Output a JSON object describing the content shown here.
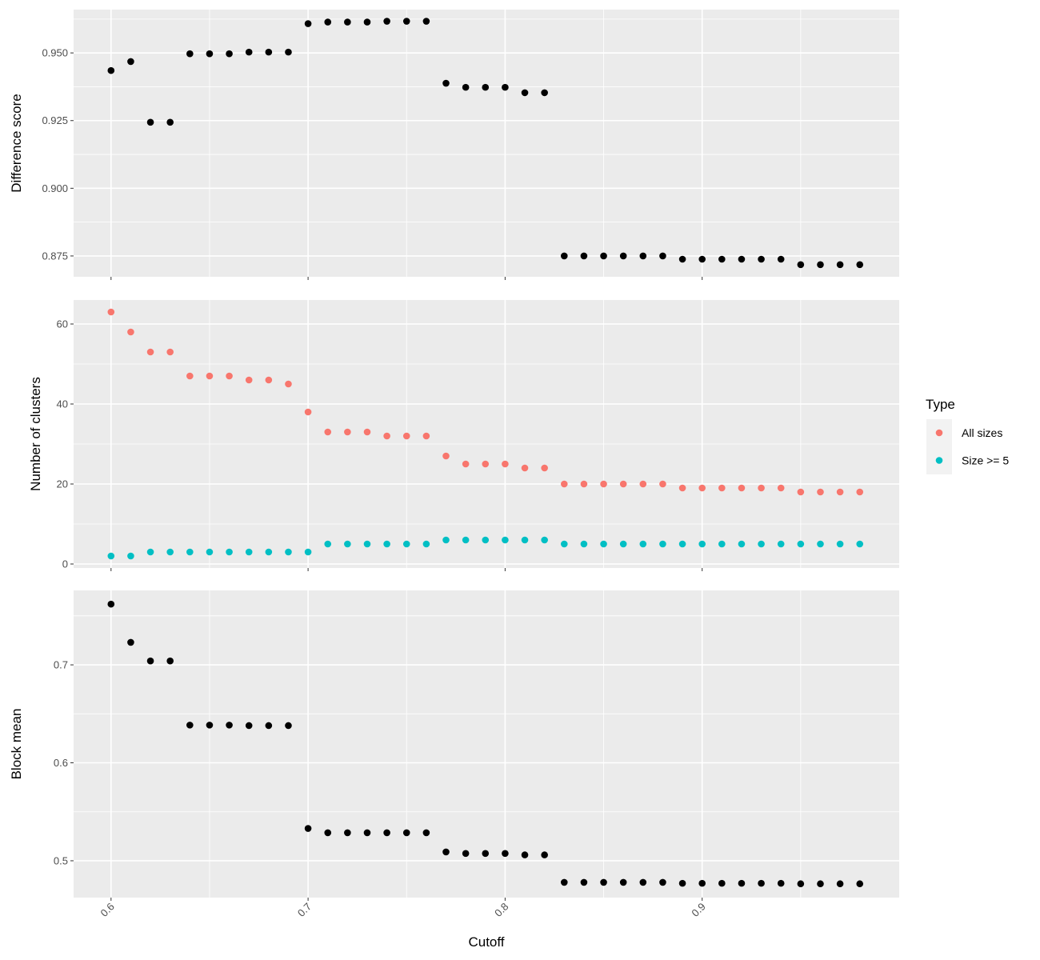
{
  "chart_data": [
    {
      "type": "scatter",
      "ylabel": "Difference score",
      "x": [
        0.6,
        0.61,
        0.62,
        0.63,
        0.64,
        0.65,
        0.66,
        0.67,
        0.68,
        0.69,
        0.7,
        0.71,
        0.72,
        0.73,
        0.74,
        0.75,
        0.76,
        0.77,
        0.78,
        0.79,
        0.8,
        0.81,
        0.82,
        0.83,
        0.84,
        0.85,
        0.86,
        0.87,
        0.88,
        0.89,
        0.9,
        0.91,
        0.92,
        0.93,
        0.94,
        0.95,
        0.96,
        0.97,
        0.98
      ],
      "series": [
        {
          "name": "Difference score",
          "color": "#000000",
          "values": [
            0.9435,
            0.9468,
            0.9244,
            0.9244,
            0.9497,
            0.9497,
            0.9497,
            0.9503,
            0.9503,
            0.9503,
            0.9608,
            0.9614,
            0.9614,
            0.9614,
            0.9617,
            0.9617,
            0.9617,
            0.9388,
            0.9373,
            0.9373,
            0.9373,
            0.9353,
            0.9353,
            0.875,
            0.875,
            0.875,
            0.875,
            0.875,
            0.875,
            0.8738,
            0.8738,
            0.8738,
            0.8738,
            0.8738,
            0.8738,
            0.8718,
            0.8718,
            0.8718,
            0.8718
          ]
        }
      ],
      "yticks": [
        "0.875",
        "0.900",
        "0.925",
        "0.950"
      ],
      "ytick_values": [
        0.875,
        0.9,
        0.925,
        0.95
      ],
      "ylim": [
        0.8673,
        0.966
      ],
      "xlim": [
        0.581,
        1.0
      ]
    },
    {
      "type": "scatter",
      "ylabel": "Number of clusters",
      "x": [
        0.6,
        0.61,
        0.62,
        0.63,
        0.64,
        0.65,
        0.66,
        0.67,
        0.68,
        0.69,
        0.7,
        0.71,
        0.72,
        0.73,
        0.74,
        0.75,
        0.76,
        0.77,
        0.78,
        0.79,
        0.8,
        0.81,
        0.82,
        0.83,
        0.84,
        0.85,
        0.86,
        0.87,
        0.88,
        0.89,
        0.9,
        0.91,
        0.92,
        0.93,
        0.94,
        0.95,
        0.96,
        0.97,
        0.98
      ],
      "series": [
        {
          "name": "All sizes",
          "color": "#F8766D",
          "values": [
            63,
            58,
            53,
            53,
            47,
            47,
            47,
            46,
            46,
            45,
            38,
            33,
            33,
            33,
            32,
            32,
            32,
            27,
            25,
            25,
            25,
            24,
            24,
            20,
            20,
            20,
            20,
            20,
            20,
            19,
            19,
            19,
            19,
            19,
            19,
            18,
            18,
            18,
            18
          ]
        },
        {
          "name": "Size >= 5",
          "color": "#00BFC4",
          "values": [
            2,
            2,
            3,
            3,
            3,
            3,
            3,
            3,
            3,
            3,
            3,
            5,
            5,
            5,
            5,
            5,
            5,
            6,
            6,
            6,
            6,
            6,
            6,
            5,
            5,
            5,
            5,
            5,
            5,
            5,
            5,
            5,
            5,
            5,
            5,
            5,
            5,
            5,
            5
          ]
        }
      ],
      "yticks": [
        "0",
        "20",
        "40",
        "60"
      ],
      "ytick_values": [
        0,
        20,
        40,
        60
      ],
      "ylim": [
        -1,
        66
      ],
      "xlim": [
        0.581,
        1.0
      ]
    },
    {
      "type": "scatter",
      "ylabel": "Block mean",
      "xlabel": "Cutoff",
      "x": [
        0.6,
        0.61,
        0.62,
        0.63,
        0.64,
        0.65,
        0.66,
        0.67,
        0.68,
        0.69,
        0.7,
        0.71,
        0.72,
        0.73,
        0.74,
        0.75,
        0.76,
        0.77,
        0.78,
        0.79,
        0.8,
        0.81,
        0.82,
        0.83,
        0.84,
        0.85,
        0.86,
        0.87,
        0.88,
        0.89,
        0.9,
        0.91,
        0.92,
        0.93,
        0.94,
        0.95,
        0.96,
        0.97,
        0.98
      ],
      "series": [
        {
          "name": "Block mean",
          "color": "#000000",
          "values": [
            0.762,
            0.723,
            0.704,
            0.704,
            0.6385,
            0.6385,
            0.6385,
            0.638,
            0.638,
            0.638,
            0.533,
            0.5286,
            0.5286,
            0.5286,
            0.5286,
            0.5286,
            0.5286,
            0.509,
            0.5075,
            0.5075,
            0.5075,
            0.506,
            0.506,
            0.478,
            0.478,
            0.478,
            0.478,
            0.478,
            0.478,
            0.477,
            0.477,
            0.477,
            0.477,
            0.477,
            0.477,
            0.4765,
            0.4765,
            0.4765,
            0.4765
          ]
        }
      ],
      "yticks": [
        "0.5",
        "0.6",
        "0.7"
      ],
      "ytick_values": [
        0.5,
        0.6,
        0.7
      ],
      "ylim": [
        0.4624,
        0.776
      ],
      "xlim": [
        0.581,
        1.0
      ]
    }
  ],
  "xaxis": {
    "label": "Cutoff",
    "ticks": [
      "0.6",
      "0.7",
      "0.8",
      "0.9"
    ],
    "tick_values": [
      0.6,
      0.7,
      0.8,
      0.9
    ],
    "minor": [
      0.65,
      0.75,
      0.85,
      0.95
    ]
  },
  "legend": {
    "title": "Type",
    "placement": "right",
    "items": [
      {
        "label": "All sizes",
        "color": "#F8766D"
      },
      {
        "label": "Size >= 5",
        "color": "#00BFC4"
      }
    ]
  }
}
